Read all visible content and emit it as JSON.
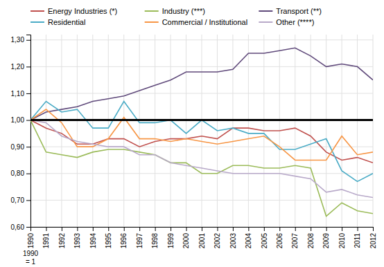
{
  "chart_data": {
    "type": "line",
    "x": [
      1990,
      1991,
      1992,
      1993,
      1994,
      1995,
      1996,
      1997,
      1998,
      1999,
      2000,
      2001,
      2002,
      2003,
      2004,
      2005,
      2006,
      2007,
      2008,
      2009,
      2010,
      2011,
      2012
    ],
    "series": [
      {
        "name": "Energy Industries (*)",
        "color": "#c0504d",
        "values": [
          1.0,
          0.97,
          0.95,
          0.91,
          0.91,
          0.93,
          0.93,
          0.9,
          0.92,
          0.93,
          0.93,
          0.94,
          0.93,
          0.97,
          0.97,
          0.96,
          0.96,
          0.97,
          0.94,
          0.88,
          0.85,
          0.86,
          0.84
        ]
      },
      {
        "name": "Industry (***)",
        "color": "#9bbb59",
        "values": [
          1.0,
          0.88,
          0.87,
          0.86,
          0.88,
          0.89,
          0.89,
          0.88,
          0.87,
          0.84,
          0.84,
          0.8,
          0.8,
          0.83,
          0.83,
          0.82,
          0.82,
          0.83,
          0.82,
          0.64,
          0.69,
          0.66,
          0.65
        ]
      },
      {
        "name": "Transport (**)",
        "color": "#604a7b",
        "values": [
          1.0,
          1.03,
          1.04,
          1.05,
          1.07,
          1.08,
          1.09,
          1.11,
          1.13,
          1.15,
          1.18,
          1.18,
          1.18,
          1.19,
          1.25,
          1.25,
          1.26,
          1.27,
          1.24,
          1.2,
          1.21,
          1.2,
          1.15
        ]
      },
      {
        "name": "Residential",
        "color": "#4bacc6",
        "values": [
          1.0,
          1.07,
          1.03,
          1.04,
          0.97,
          0.97,
          1.07,
          0.99,
          0.99,
          1.0,
          0.95,
          1.0,
          0.96,
          0.97,
          0.95,
          0.95,
          0.89,
          0.89,
          0.91,
          0.93,
          0.81,
          0.77,
          0.8
        ]
      },
      {
        "name": "Commercial / Institutional",
        "color": "#f79646",
        "values": [
          1.0,
          1.04,
          0.99,
          0.9,
          0.9,
          0.93,
          1.01,
          0.93,
          0.93,
          0.92,
          0.93,
          0.92,
          0.91,
          0.92,
          0.93,
          0.94,
          0.9,
          0.85,
          0.85,
          0.85,
          0.94,
          0.87,
          0.88
        ]
      },
      {
        "name": "Other (****)",
        "color": "#b8a9c9",
        "values": [
          1.0,
          0.99,
          0.94,
          0.92,
          0.91,
          0.9,
          0.9,
          0.87,
          0.87,
          0.84,
          0.83,
          0.82,
          0.81,
          0.8,
          0.8,
          0.8,
          0.8,
          0.79,
          0.78,
          0.73,
          0.74,
          0.72,
          0.71
        ]
      }
    ],
    "xlim": [
      1990,
      2012
    ],
    "xticks": [
      1990,
      1991,
      1992,
      1993,
      1994,
      1995,
      1996,
      1997,
      1998,
      1999,
      2000,
      2001,
      2002,
      2003,
      2004,
      2005,
      2006,
      2007,
      2008,
      2009,
      2010,
      2011,
      2012
    ],
    "ylim": [
      0.6,
      1.32
    ],
    "yticks": [
      {
        "value": 0.6,
        "label": "0,60"
      },
      {
        "value": 0.7,
        "label": "0,70"
      },
      {
        "value": 0.8,
        "label": "0,80"
      },
      {
        "value": 0.9,
        "label": "0,90"
      },
      {
        "value": 1.0,
        "label": "1,00"
      },
      {
        "value": 1.1,
        "label": "1,10"
      },
      {
        "value": 1.2,
        "label": "1,20"
      },
      {
        "value": 1.3,
        "label": "1,30"
      }
    ],
    "reference_line": {
      "y": 1.0,
      "color": "#000000"
    },
    "annotations": [
      {
        "text": "1990\n= 1"
      }
    ],
    "grid": true,
    "legend": "top"
  }
}
